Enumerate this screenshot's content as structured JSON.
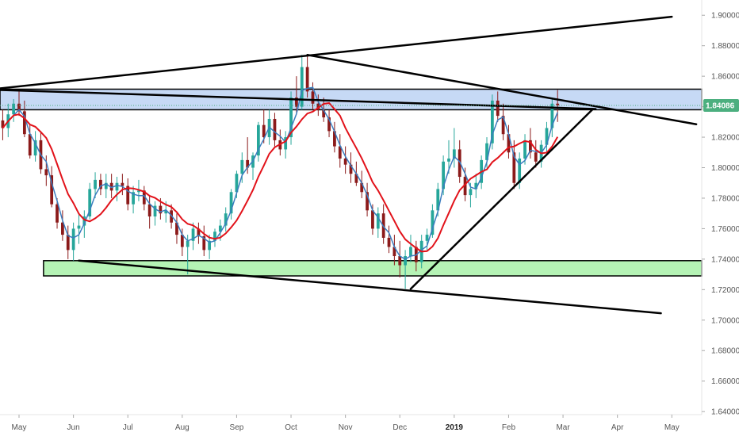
{
  "chart_data": {
    "type": "candlestick",
    "title": "",
    "xlabel": "",
    "ylabel": "",
    "x_ticks": [
      "May",
      "Jun",
      "Jul",
      "Aug",
      "Sep",
      "Oct",
      "Nov",
      "Dec",
      "2019",
      "Feb",
      "Mar",
      "Apr",
      "May"
    ],
    "x_tick_weeks": [
      0,
      10,
      20,
      30,
      40,
      50,
      60,
      70,
      80,
      90,
      100,
      110,
      120
    ],
    "y_ticks": [
      "1.90000",
      "1.88000",
      "1.86000",
      "1.84000",
      "1.82000",
      "1.80000",
      "1.78000",
      "1.76000",
      "1.74000",
      "1.72000",
      "1.70000",
      "1.68000",
      "1.66000",
      "1.64000"
    ],
    "ylim": [
      1.638,
      1.91
    ],
    "xlim": [
      -3.5,
      125.5
    ],
    "grid": false,
    "last_price_label": "1.84086",
    "last_price": 1.84086,
    "colors": {
      "up": "#26a69a",
      "down": "#8b1a1a",
      "fast_ma": "#3b7dbf",
      "slow_ma": "#e2121a",
      "resistance_zone": "#c6d9f5",
      "support_zone": "#b5f3b5",
      "price_label_bg": "#4caf7f",
      "trendline": "#000000",
      "axis_text": "#555555"
    },
    "zones": [
      {
        "name": "resistance",
        "y_low": 1.838,
        "y_high": 1.8515,
        "x_start": -3.5,
        "x_end": 125.5
      },
      {
        "name": "support",
        "y_low": 1.729,
        "y_high": 1.739,
        "x_start": 4.5,
        "x_end": 125.5
      }
    ],
    "trendlines": [
      {
        "x1": -3.5,
        "y1": 1.852,
        "x2": 120,
        "y2": 1.899
      },
      {
        "x1": 53,
        "y1": 1.874,
        "x2": 124.5,
        "y2": 1.8285
      },
      {
        "x1": 11,
        "y1": 1.739,
        "x2": 118,
        "y2": 1.7045
      },
      {
        "x1": 72,
        "y1": 1.7205,
        "x2": 105.5,
        "y2": 1.8385
      },
      {
        "x1": -3.5,
        "y1": 1.851,
        "x2": 106,
        "y2": 1.8385
      }
    ],
    "candles": [
      [
        -3,
        1.831,
        1.838,
        1.818,
        1.826
      ],
      [
        -2,
        1.826,
        1.842,
        1.82,
        1.835
      ],
      [
        -1,
        1.835,
        1.845,
        1.83,
        1.842
      ],
      [
        0,
        1.842,
        1.851,
        1.834,
        1.837
      ],
      [
        1,
        1.837,
        1.844,
        1.82,
        1.822
      ],
      [
        2,
        1.822,
        1.828,
        1.806,
        1.808
      ],
      [
        3,
        1.808,
        1.824,
        1.804,
        1.818
      ],
      [
        4,
        1.818,
        1.823,
        1.796,
        1.799
      ],
      [
        5,
        1.799,
        1.808,
        1.788,
        1.795
      ],
      [
        6,
        1.795,
        1.801,
        1.774,
        1.776
      ],
      [
        7,
        1.776,
        1.78,
        1.76,
        1.764
      ],
      [
        8,
        1.764,
        1.772,
        1.752,
        1.756
      ],
      [
        9,
        1.756,
        1.762,
        1.74,
        1.746
      ],
      [
        10,
        1.746,
        1.764,
        1.739,
        1.76
      ],
      [
        11,
        1.76,
        1.77,
        1.75,
        1.762
      ],
      [
        12,
        1.762,
        1.772,
        1.754,
        1.768
      ],
      [
        13,
        1.768,
        1.79,
        1.766,
        1.786
      ],
      [
        14,
        1.786,
        1.797,
        1.78,
        1.792
      ],
      [
        15,
        1.792,
        1.796,
        1.782,
        1.786
      ],
      [
        16,
        1.786,
        1.796,
        1.78,
        1.79
      ],
      [
        17,
        1.79,
        1.796,
        1.78,
        1.785
      ],
      [
        18,
        1.785,
        1.794,
        1.778,
        1.79
      ],
      [
        19,
        1.79,
        1.796,
        1.782,
        1.788
      ],
      [
        20,
        1.788,
        1.793,
        1.772,
        1.776
      ],
      [
        21,
        1.776,
        1.788,
        1.77,
        1.784
      ],
      [
        22,
        1.784,
        1.792,
        1.778,
        1.785
      ],
      [
        23,
        1.785,
        1.788,
        1.772,
        1.776
      ],
      [
        24,
        1.776,
        1.782,
        1.76,
        1.768
      ],
      [
        25,
        1.768,
        1.778,
        1.762,
        1.775
      ],
      [
        26,
        1.775,
        1.78,
        1.766,
        1.77
      ],
      [
        27,
        1.77,
        1.778,
        1.764,
        1.772
      ],
      [
        28,
        1.772,
        1.776,
        1.76,
        1.764
      ],
      [
        29,
        1.764,
        1.77,
        1.75,
        1.756
      ],
      [
        30,
        1.756,
        1.76,
        1.742,
        1.748
      ],
      [
        31,
        1.748,
        1.756,
        1.73,
        1.752
      ],
      [
        32,
        1.752,
        1.764,
        1.746,
        1.76
      ],
      [
        33,
        1.76,
        1.764,
        1.75,
        1.755
      ],
      [
        34,
        1.755,
        1.762,
        1.742,
        1.746
      ],
      [
        35,
        1.746,
        1.756,
        1.74,
        1.752
      ],
      [
        36,
        1.752,
        1.76,
        1.748,
        1.758
      ],
      [
        37,
        1.758,
        1.766,
        1.752,
        1.762
      ],
      [
        38,
        1.762,
        1.774,
        1.758,
        1.77
      ],
      [
        39,
        1.77,
        1.786,
        1.766,
        1.784
      ],
      [
        40,
        1.784,
        1.798,
        1.78,
        1.796
      ],
      [
        41,
        1.796,
        1.81,
        1.79,
        1.805
      ],
      [
        42,
        1.805,
        1.82,
        1.796,
        1.8
      ],
      [
        43,
        1.8,
        1.81,
        1.792,
        1.808
      ],
      [
        44,
        1.808,
        1.83,
        1.804,
        1.828
      ],
      [
        45,
        1.828,
        1.838,
        1.816,
        1.82
      ],
      [
        46,
        1.82,
        1.838,
        1.815,
        1.832
      ],
      [
        47,
        1.832,
        1.836,
        1.814,
        1.818
      ],
      [
        48,
        1.818,
        1.825,
        1.808,
        1.812
      ],
      [
        49,
        1.812,
        1.824,
        1.806,
        1.82
      ],
      [
        50,
        1.82,
        1.85,
        1.815,
        1.846
      ],
      [
        51,
        1.846,
        1.86,
        1.836,
        1.84
      ],
      [
        52,
        1.84,
        1.874,
        1.838,
        1.866
      ],
      [
        53,
        1.866,
        1.874,
        1.846,
        1.85
      ],
      [
        54,
        1.85,
        1.856,
        1.838,
        1.842
      ],
      [
        55,
        1.842,
        1.848,
        1.834,
        1.838
      ],
      [
        56,
        1.838,
        1.846,
        1.83,
        1.833
      ],
      [
        57,
        1.833,
        1.838,
        1.82,
        1.824
      ],
      [
        58,
        1.824,
        1.83,
        1.81,
        1.814
      ],
      [
        59,
        1.814,
        1.822,
        1.8,
        1.806
      ],
      [
        60,
        1.806,
        1.814,
        1.796,
        1.802
      ],
      [
        61,
        1.802,
        1.81,
        1.79,
        1.796
      ],
      [
        62,
        1.796,
        1.804,
        1.788,
        1.79
      ],
      [
        63,
        1.79,
        1.798,
        1.78,
        1.784
      ],
      [
        64,
        1.784,
        1.79,
        1.768,
        1.772
      ],
      [
        65,
        1.772,
        1.776,
        1.756,
        1.76
      ],
      [
        66,
        1.76,
        1.774,
        1.754,
        1.77
      ],
      [
        67,
        1.77,
        1.776,
        1.75,
        1.754
      ],
      [
        68,
        1.754,
        1.762,
        1.744,
        1.748
      ],
      [
        69,
        1.748,
        1.756,
        1.736,
        1.742
      ],
      [
        70,
        1.742,
        1.752,
        1.728,
        1.736
      ],
      [
        71,
        1.736,
        1.746,
        1.7205,
        1.742
      ],
      [
        72,
        1.742,
        1.756,
        1.738,
        1.748
      ],
      [
        73,
        1.748,
        1.752,
        1.732,
        1.738
      ],
      [
        74,
        1.738,
        1.756,
        1.734,
        1.752
      ],
      [
        75,
        1.752,
        1.76,
        1.746,
        1.756
      ],
      [
        76,
        1.756,
        1.776,
        1.754,
        1.772
      ],
      [
        77,
        1.772,
        1.79,
        1.768,
        1.786
      ],
      [
        78,
        1.786,
        1.808,
        1.782,
        1.804
      ],
      [
        79,
        1.804,
        1.818,
        1.796,
        1.806
      ],
      [
        80,
        1.806,
        1.826,
        1.8,
        1.812
      ],
      [
        81,
        1.812,
        1.818,
        1.79,
        1.794
      ],
      [
        82,
        1.794,
        1.8,
        1.778,
        1.782
      ],
      [
        83,
        1.782,
        1.79,
        1.774,
        1.786
      ],
      [
        84,
        1.786,
        1.796,
        1.78,
        1.79
      ],
      [
        85,
        1.79,
        1.808,
        1.786,
        1.805
      ],
      [
        86,
        1.805,
        1.82,
        1.8,
        1.816
      ],
      [
        87,
        1.816,
        1.848,
        1.812,
        1.844
      ],
      [
        88,
        1.844,
        1.85,
        1.83,
        1.834
      ],
      [
        89,
        1.834,
        1.842,
        1.818,
        1.822
      ],
      [
        90,
        1.822,
        1.828,
        1.806,
        1.81
      ],
      [
        91,
        1.81,
        1.818,
        1.786,
        1.79
      ],
      [
        92,
        1.79,
        1.81,
        1.786,
        1.806
      ],
      [
        93,
        1.806,
        1.822,
        1.802,
        1.818
      ],
      [
        94,
        1.818,
        1.826,
        1.806,
        1.81
      ],
      [
        95,
        1.81,
        1.818,
        1.8,
        1.804
      ],
      [
        96,
        1.804,
        1.818,
        1.8,
        1.815
      ],
      [
        97,
        1.815,
        1.83,
        1.81,
        1.826
      ],
      [
        98,
        1.826,
        1.846,
        1.82,
        1.842
      ],
      [
        99,
        1.842,
        1.851,
        1.83,
        1.8409
      ]
    ],
    "series": []
  }
}
